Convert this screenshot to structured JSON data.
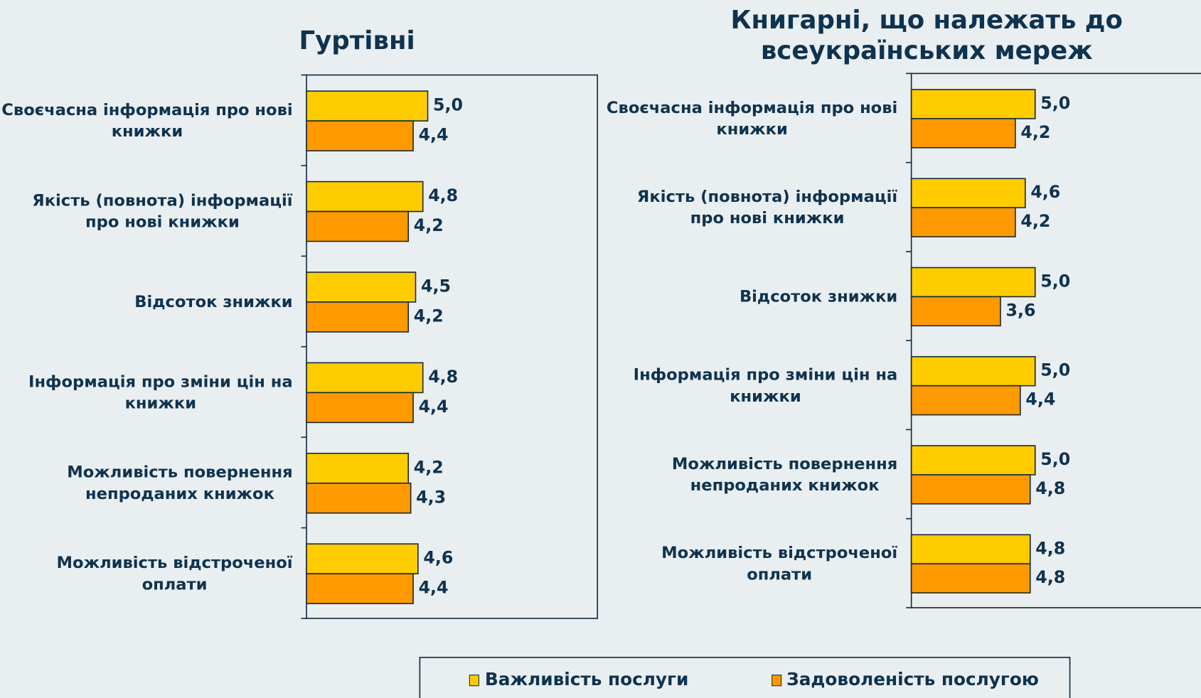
{
  "chart_data": [
    {
      "type": "barh",
      "title": "Гуртівні",
      "categories": [
        "Своєчасна інформація про нові\nкнижки",
        "Якість (повнота) інформації\nпро нові книжки",
        "Відсоток знижки",
        "Інформація про зміни цін на\nкнижки",
        "Можливість повернення\nнепроданих книжок",
        "Можливість відстроченої\nоплати"
      ],
      "series": [
        {
          "name": "Важливість послуги",
          "color": "#ffcc00",
          "values": [
            5.0,
            4.8,
            4.5,
            4.8,
            4.2,
            4.6
          ],
          "value_labels": [
            "5,0",
            "4,8",
            "4,5",
            "4,8",
            "4,2",
            "4,6"
          ]
        },
        {
          "name": "Задоволеність послугою",
          "color": "#ff9900",
          "values": [
            4.4,
            4.2,
            4.2,
            4.4,
            4.3,
            4.4
          ],
          "value_labels": [
            "4,4",
            "4,2",
            "4,2",
            "4,4",
            "4,3",
            "4,4"
          ]
        }
      ],
      "xlim": [
        0,
        12
      ]
    },
    {
      "type": "barh",
      "title": "Книгарні, що належать до\nвсеукраїнських мереж",
      "categories": [
        "Своєчасна інформація про нові\nкнижки",
        "Якість (повнота) інформації\nпро нові книжки",
        "Відсоток знижки",
        "Інформація про зміни цін на\nкнижки",
        "Можливість повернення\nнепроданих книжок",
        "Можливість відстроченої\nоплати"
      ],
      "series": [
        {
          "color": "#ffcc00",
          "values": [
            5.0,
            4.6,
            5.0,
            5.0,
            5.0,
            4.8
          ],
          "value_labels": [
            "5,0",
            "4,6",
            "5,0",
            "5,0",
            "5,0",
            "4,8"
          ]
        },
        {
          "color": "#ff9900",
          "values": [
            4.2,
            4.2,
            3.6,
            4.4,
            4.8,
            4.8
          ],
          "value_labels": [
            "4,2",
            "4,2",
            "3,6",
            "4,4",
            "4,8",
            "4,8"
          ]
        }
      ],
      "xlim": [
        0,
        12
      ]
    }
  ]
}
